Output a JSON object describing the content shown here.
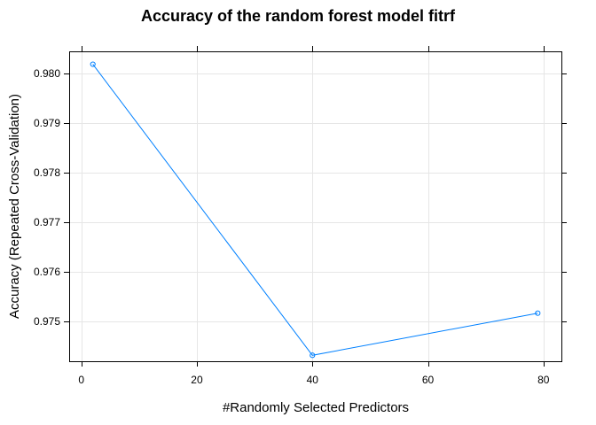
{
  "chart_data": {
    "type": "line",
    "title": "Accuracy of the random forest model fitrf",
    "xlabel": "#Randomly Selected Predictors",
    "ylabel": "Accuracy (Repeated Cross-Validation)",
    "x": [
      2,
      40,
      79
    ],
    "series": [
      {
        "values": [
          0.98019,
          0.97432,
          0.97517
        ]
      }
    ],
    "xlim": [
      -2.1,
      83.1
    ],
    "ylim": [
      0.9742,
      0.98045
    ],
    "xticks": [
      0,
      20,
      40,
      60,
      80
    ],
    "xtick_labels": [
      "0",
      "20",
      "40",
      "60",
      "80"
    ],
    "yticks": [
      0.975,
      0.976,
      0.977,
      0.978,
      0.979,
      0.98
    ],
    "ytick_labels": [
      "0.975",
      "0.976",
      "0.977",
      "0.978",
      "0.979",
      "0.980"
    ],
    "grid": true,
    "line_color": "#0080ff",
    "marker": "open-circle"
  }
}
